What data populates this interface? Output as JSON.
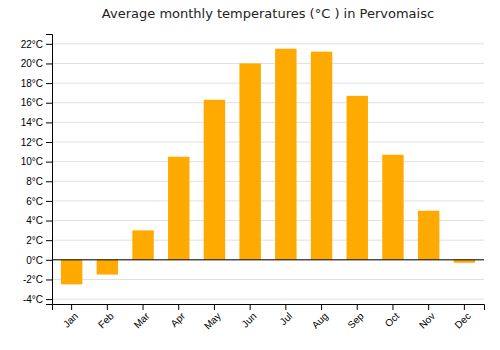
{
  "chart_data": {
    "type": "bar",
    "title": "Average monthly temperatures (°C ) in Pervomaisc",
    "categories": [
      "Jan",
      "Feb",
      "Mar",
      "Apr",
      "May",
      "Jun",
      "Jul",
      "Aug",
      "Sep",
      "Oct",
      "Nov",
      "Dec"
    ],
    "values": [
      -2.5,
      -1.5,
      3.0,
      10.5,
      16.3,
      20.0,
      21.5,
      21.2,
      16.7,
      10.7,
      5.0,
      -0.3
    ],
    "color": "#FFAA00",
    "ylim": [
      -4.5,
      23
    ],
    "yticks": [
      {
        "value": -4,
        "label": "-4°C"
      },
      {
        "value": -2,
        "label": "-2°C"
      },
      {
        "value": 0,
        "label": "0°C"
      },
      {
        "value": 2,
        "label": "2°C"
      },
      {
        "value": 4,
        "label": "4°C"
      },
      {
        "value": 6,
        "label": "6°C"
      },
      {
        "value": 8,
        "label": "8°C"
      },
      {
        "value": 10,
        "label": "10°C"
      },
      {
        "value": 12,
        "label": "12°C"
      },
      {
        "value": 14,
        "label": "14°C"
      },
      {
        "value": 16,
        "label": "16°C"
      },
      {
        "value": 18,
        "label": "18°C"
      },
      {
        "value": 20,
        "label": "20°C"
      },
      {
        "value": 22,
        "label": "22°C"
      }
    ],
    "grid": true
  }
}
